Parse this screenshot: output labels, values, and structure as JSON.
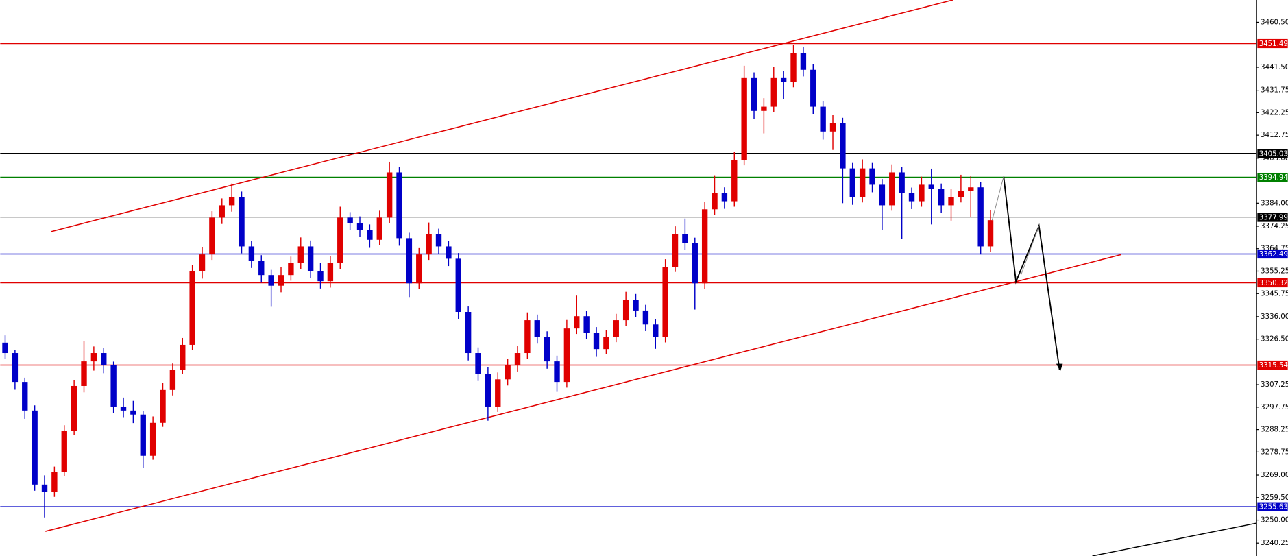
{
  "chart_data": {
    "type": "candlestick",
    "colors": {
      "up": "#e00000",
      "down": "#0000c8"
    },
    "ylim": [
      3234.8,
      3469.9
    ],
    "yticks": [
      {
        "value": 3460.5,
        "label": "3460.50"
      },
      {
        "value": 3441.5,
        "label": "3441.50"
      },
      3431.75,
      3422.25,
      3412.75,
      {
        "value": 3403,
        "label": "3403.00"
      },
      {
        "value": 3384,
        "label": "3384.00"
      },
      3374.25,
      3364.75,
      3355.25,
      3345.75,
      {
        "value": 3336,
        "label": "3336.00"
      },
      {
        "value": 3326.5,
        "label": "3326.50"
      },
      3307.25,
      3297.75,
      3288.25,
      3278.75,
      {
        "value": 3269,
        "label": "3269.00"
      },
      {
        "value": 3259.5,
        "label": "3259.50"
      },
      {
        "value": 3250,
        "label": "3250.00"
      },
      3240.25
    ],
    "levels": [
      {
        "value": 3451.49,
        "color": "#e00000"
      },
      {
        "value": 3405.03,
        "color": "#000000"
      },
      {
        "value": 3394.94,
        "color": "#008000"
      },
      {
        "value": 3377.99,
        "color": "#c0c0c0"
      },
      {
        "value": 3362.49,
        "color": "#0000c8"
      },
      {
        "value": 3350.32,
        "color": "#e00000"
      },
      {
        "value": 3315.54,
        "color": "#e00000"
      },
      {
        "value": 3255.63,
        "color": "#0000c8"
      }
    ],
    "ohlc": [
      [
        3325.0,
        3328.1,
        3318.2,
        3320.6
      ],
      [
        3320.6,
        3322.0,
        3305.1,
        3308.4
      ],
      [
        3308.4,
        3310.2,
        3292.8,
        3296.3
      ],
      [
        3296.3,
        3298.5,
        3262.4,
        3265.0
      ],
      [
        3265.0,
        3268.9,
        3251.1,
        3262.0
      ],
      [
        3262.0,
        3272.6,
        3259.8,
        3270.2
      ],
      [
        3270.2,
        3290.1,
        3268.5,
        3287.6
      ],
      [
        3287.6,
        3309.3,
        3285.9,
        3306.7
      ],
      [
        3306.7,
        3325.8,
        3304.0,
        3317.1
      ],
      [
        3317.1,
        3323.4,
        3313.2,
        3320.6
      ],
      [
        3320.6,
        3322.9,
        3312.1,
        3315.4
      ],
      [
        3315.4,
        3317.0,
        3295.2,
        3298.0
      ],
      [
        3298.0,
        3301.8,
        3293.5,
        3296.3
      ],
      [
        3296.3,
        3300.4,
        3291.0,
        3294.6
      ],
      [
        3294.6,
        3296.2,
        3272.0,
        3277.2
      ],
      [
        3277.2,
        3293.8,
        3275.5,
        3291.1
      ],
      [
        3291.1,
        3307.9,
        3289.4,
        3305.0
      ],
      [
        3305.0,
        3316.2,
        3302.7,
        3313.6
      ],
      [
        3313.6,
        3327.0,
        3311.8,
        3324.1
      ],
      [
        3324.1,
        3357.9,
        3322.0,
        3355.3
      ],
      [
        3355.3,
        3365.4,
        3352.1,
        3362.3
      ],
      [
        3362.3,
        3380.6,
        3360.0,
        3377.9
      ],
      [
        3377.9,
        3386.0,
        3375.2,
        3383.1
      ],
      [
        3383.1,
        3392.3,
        3380.4,
        3386.6
      ],
      [
        3386.6,
        3388.9,
        3362.8,
        3365.7
      ],
      [
        3365.7,
        3368.1,
        3356.6,
        3359.5
      ],
      [
        3359.5,
        3362.0,
        3350.4,
        3353.6
      ],
      [
        3353.6,
        3355.8,
        3340.2,
        3349.1
      ],
      [
        3349.1,
        3356.9,
        3346.3,
        3353.6
      ],
      [
        3353.6,
        3361.4,
        3351.2,
        3358.8
      ],
      [
        3358.8,
        3369.5,
        3356.0,
        3365.7
      ],
      [
        3365.7,
        3368.2,
        3352.4,
        3355.3
      ],
      [
        3355.3,
        3358.6,
        3347.9,
        3351.0
      ],
      [
        3351.0,
        3361.7,
        3348.3,
        3358.8
      ],
      [
        3358.8,
        3382.5,
        3356.1,
        3377.9
      ],
      [
        3377.9,
        3380.2,
        3372.6,
        3375.5
      ],
      [
        3375.5,
        3378.4,
        3369.8,
        3372.7
      ],
      [
        3372.7,
        3375.0,
        3365.1,
        3368.5
      ],
      [
        3368.5,
        3380.8,
        3366.2,
        3377.9
      ],
      [
        3377.9,
        3401.5,
        3375.6,
        3397.0
      ],
      [
        3397.0,
        3399.2,
        3366.0,
        3369.2
      ],
      [
        3369.2,
        3371.5,
        3344.3,
        3350.1
      ],
      [
        3350.1,
        3365.0,
        3347.8,
        3362.3
      ],
      [
        3362.3,
        3375.8,
        3360.0,
        3370.9
      ],
      [
        3370.9,
        3373.2,
        3362.5,
        3365.7
      ],
      [
        3365.7,
        3368.0,
        3357.4,
        3360.5
      ],
      [
        3360.5,
        3362.9,
        3335.1,
        3338.0
      ],
      [
        3338.0,
        3340.3,
        3317.5,
        3320.6
      ],
      [
        3320.6,
        3323.0,
        3308.8,
        3311.9
      ],
      [
        3311.9,
        3314.6,
        3292.0,
        3298.0
      ],
      [
        3298.0,
        3312.4,
        3295.7,
        3309.5
      ],
      [
        3309.5,
        3318.2,
        3306.9,
        3315.4
      ],
      [
        3315.4,
        3323.5,
        3312.8,
        3320.6
      ],
      [
        3320.6,
        3337.8,
        3318.0,
        3334.5
      ],
      [
        3334.5,
        3336.9,
        3324.6,
        3327.5
      ],
      [
        3327.5,
        3329.8,
        3314.0,
        3317.1
      ],
      [
        3317.1,
        3319.5,
        3304.2,
        3308.4
      ],
      [
        3308.4,
        3334.6,
        3306.0,
        3331.0
      ],
      [
        3331.0,
        3344.9,
        3328.7,
        3336.2
      ],
      [
        3336.2,
        3338.5,
        3326.4,
        3329.3
      ],
      [
        3329.3,
        3331.6,
        3319.0,
        3322.3
      ],
      [
        3322.3,
        3330.4,
        3320.1,
        3327.5
      ],
      [
        3327.5,
        3337.2,
        3325.2,
        3334.5
      ],
      [
        3334.5,
        3346.5,
        3332.2,
        3343.2
      ],
      [
        3343.2,
        3345.6,
        3335.7,
        3338.6
      ],
      [
        3338.6,
        3341.0,
        3329.9,
        3332.7
      ],
      [
        3332.7,
        3335.0,
        3322.4,
        3327.5
      ],
      [
        3327.5,
        3360.3,
        3325.1,
        3357.1
      ],
      [
        3357.1,
        3374.2,
        3354.9,
        3370.9
      ],
      [
        3370.9,
        3377.5,
        3364.1,
        3367.0
      ],
      [
        3367.0,
        3369.4,
        3339.0,
        3350.1
      ],
      [
        3350.1,
        3384.5,
        3347.8,
        3381.4
      ],
      [
        3381.4,
        3395.8,
        3379.1,
        3388.3
      ],
      [
        3388.3,
        3390.7,
        3381.6,
        3384.8
      ],
      [
        3384.8,
        3405.6,
        3382.5,
        3402.2
      ],
      [
        3402.2,
        3442.1,
        3400.0,
        3436.9
      ],
      [
        3436.9,
        3439.3,
        3419.7,
        3423.0
      ],
      [
        3423.0,
        3428.4,
        3413.5,
        3424.8
      ],
      [
        3424.8,
        3441.6,
        3422.5,
        3436.9
      ],
      [
        3436.9,
        3439.8,
        3428.0,
        3435.2
      ],
      [
        3435.2,
        3451.0,
        3433.0,
        3447.3
      ],
      [
        3447.3,
        3450.2,
        3437.6,
        3440.4
      ],
      [
        3440.4,
        3442.8,
        3421.5,
        3424.8
      ],
      [
        3424.8,
        3427.1,
        3410.9,
        3414.3
      ],
      [
        3414.3,
        3421.2,
        3406.5,
        3417.8
      ],
      [
        3417.8,
        3420.1,
        3384.0,
        3398.7
      ],
      [
        3398.7,
        3401.0,
        3383.3,
        3386.6
      ],
      [
        3386.6,
        3402.5,
        3384.3,
        3398.7
      ],
      [
        3398.7,
        3401.0,
        3388.6,
        3391.8
      ],
      [
        3391.8,
        3394.2,
        3372.5,
        3383.1
      ],
      [
        3383.1,
        3400.4,
        3380.8,
        3397.0
      ],
      [
        3397.0,
        3399.4,
        3369.0,
        3388.3
      ],
      [
        3388.3,
        3390.6,
        3381.5,
        3384.8
      ],
      [
        3384.8,
        3395.2,
        3382.5,
        3391.8
      ],
      [
        3391.8,
        3398.6,
        3375.0,
        3390.0
      ],
      [
        3390.0,
        3392.3,
        3380.0,
        3383.1
      ],
      [
        3383.1,
        3390.0,
        3376.6,
        3386.6
      ],
      [
        3386.6,
        3396.0,
        3384.3,
        3389.3
      ],
      [
        3389.3,
        3395.5,
        3378.0,
        3390.7
      ],
      [
        3390.7,
        3393.0,
        3362.3,
        3365.7
      ],
      [
        3365.7,
        3381.2,
        3363.4,
        3376.8
      ]
    ]
  }
}
